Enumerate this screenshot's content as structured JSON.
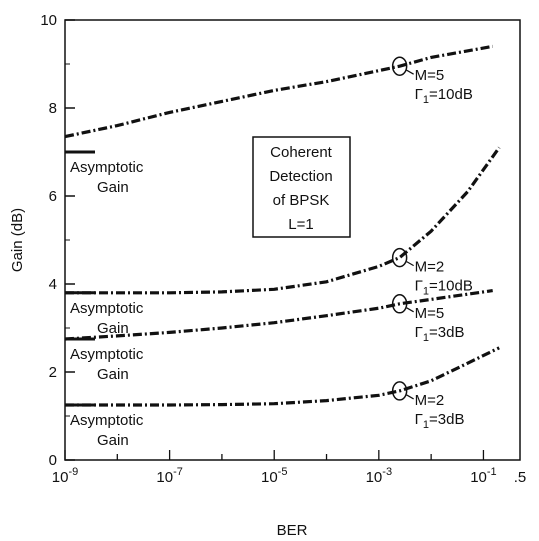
{
  "chart_data": {
    "type": "line",
    "title": "",
    "xlabel": "BER",
    "ylabel": "Gain (dB)",
    "x_scale": "log",
    "xlim": [
      1e-09,
      0.5
    ],
    "ylim": [
      0,
      10
    ],
    "x_ticks": [
      {
        "value": 1e-09,
        "base": "10",
        "exp": "-9"
      },
      {
        "value": 1e-07,
        "base": "10",
        "exp": "-7"
      },
      {
        "value": 1e-05,
        "base": "10",
        "exp": "-5"
      },
      {
        "value": 0.001,
        "base": "10",
        "exp": "-3"
      },
      {
        "value": 0.1,
        "base": "10",
        "exp": "-1"
      },
      {
        "value": 0.5,
        "base": ".5",
        "exp": ""
      }
    ],
    "y_ticks": [
      0,
      2,
      4,
      6,
      8,
      10
    ],
    "grid": false,
    "box_label": [
      "Coherent",
      "Detection",
      "of BPSK",
      "L=1"
    ],
    "series": [
      {
        "label_line1": "M=5",
        "label_line2_prefix": "Γ",
        "label_line2_sub": "1",
        "label_line2_suffix": "=10dB",
        "x": [
          1e-09,
          1e-08,
          1e-07,
          1e-06,
          1e-05,
          0.0001,
          0.001,
          0.0025,
          0.01,
          0.15
        ],
        "y": [
          7.35,
          7.6,
          7.9,
          8.15,
          8.4,
          8.6,
          8.85,
          8.95,
          9.15,
          9.4
        ],
        "marker_x": 0.0025,
        "asymptote": 7.0
      },
      {
        "label_line1": "M=2",
        "label_line2_prefix": "Γ",
        "label_line2_sub": "1",
        "label_line2_suffix": "=10dB",
        "x": [
          1e-09,
          1e-08,
          1e-07,
          1e-06,
          1e-05,
          0.0001,
          0.001,
          0.0025,
          0.01,
          0.05,
          0.2
        ],
        "y": [
          3.8,
          3.8,
          3.8,
          3.82,
          3.88,
          4.05,
          4.4,
          4.6,
          5.2,
          6.1,
          7.1
        ],
        "marker_x": 0.0025,
        "asymptote": 3.8
      },
      {
        "label_line1": "M=5",
        "label_line2_prefix": "Γ",
        "label_line2_sub": "1",
        "label_line2_suffix": "=3dB",
        "x": [
          1e-09,
          1e-08,
          1e-07,
          1e-06,
          1e-05,
          0.0001,
          0.001,
          0.0025,
          0.01,
          0.15
        ],
        "y": [
          2.75,
          2.82,
          2.9,
          3.0,
          3.12,
          3.28,
          3.45,
          3.55,
          3.65,
          3.85
        ],
        "marker_x": 0.0025,
        "asymptote": 2.75
      },
      {
        "label_line1": "M=2",
        "label_line2_prefix": "Γ",
        "label_line2_sub": "1",
        "label_line2_suffix": "=3dB",
        "x": [
          1e-09,
          1e-08,
          1e-07,
          1e-06,
          1e-05,
          0.0001,
          0.001,
          0.0025,
          0.01,
          0.05,
          0.2
        ],
        "y": [
          1.25,
          1.25,
          1.25,
          1.26,
          1.28,
          1.35,
          1.47,
          1.57,
          1.8,
          2.2,
          2.55
        ],
        "marker_x": 0.0025,
        "asymptote": 1.25
      }
    ],
    "asymptote_label_lines": [
      "Asymptotic",
      "Gain"
    ]
  }
}
